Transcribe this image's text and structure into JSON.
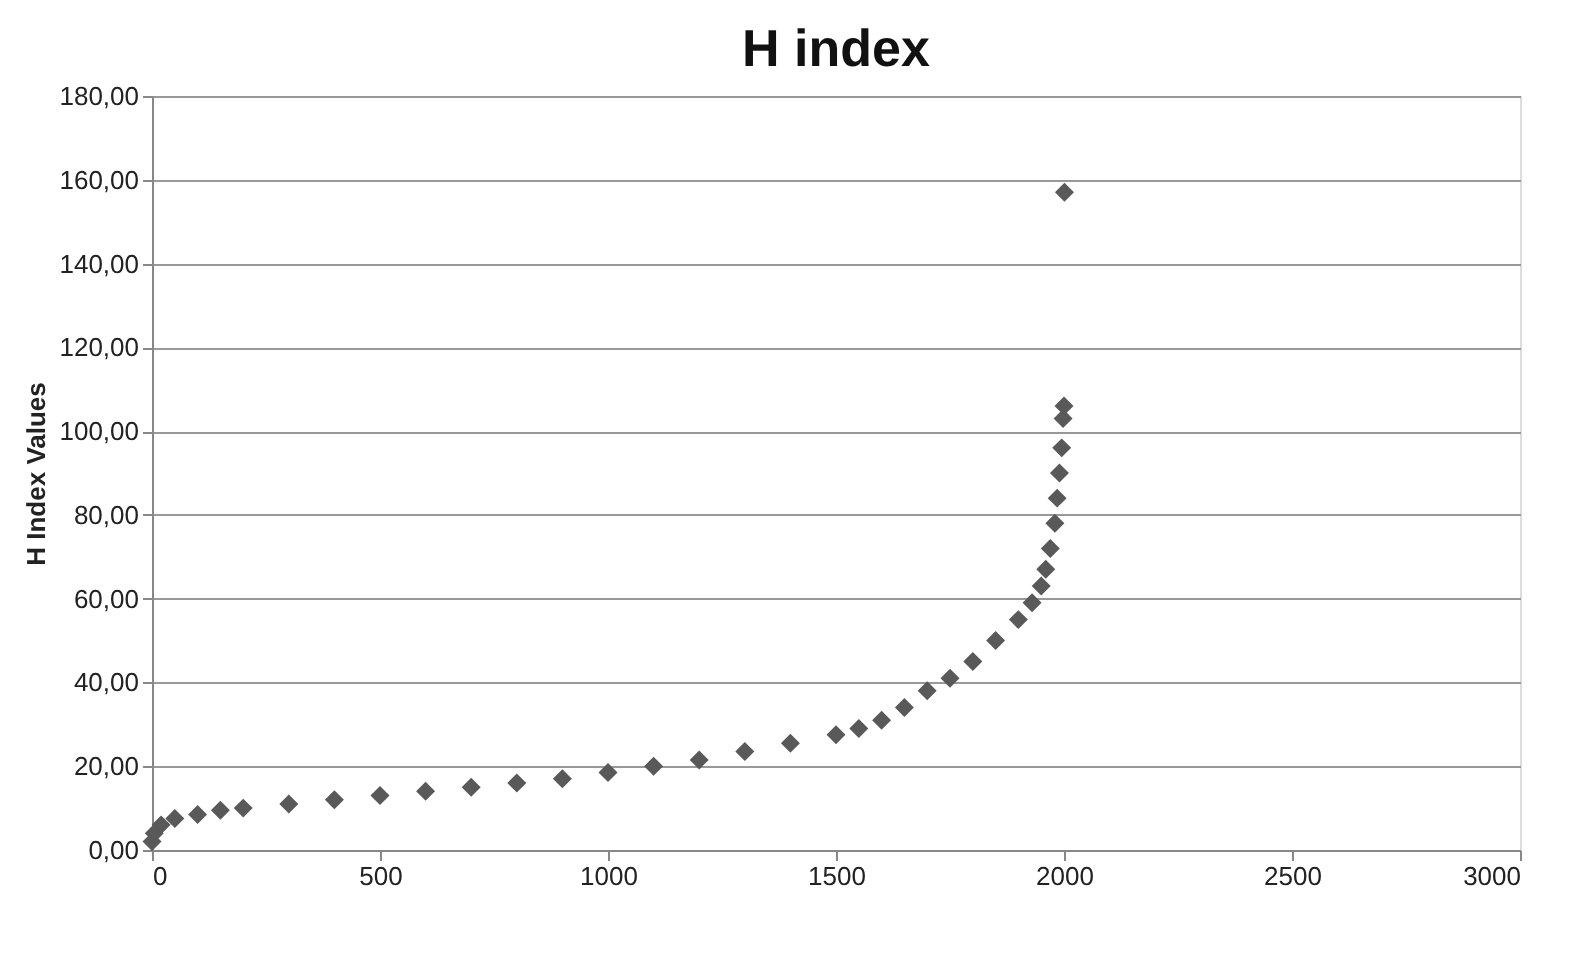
{
  "chart_data": {
    "type": "scatter",
    "title": "H index",
    "ylabel": "H Index Values",
    "x": [
      0,
      5,
      20,
      50,
      100,
      150,
      200,
      300,
      400,
      500,
      600,
      700,
      800,
      900,
      1000,
      1100,
      1200,
      1300,
      1400,
      1500,
      1550,
      1600,
      1650,
      1700,
      1750,
      1800,
      1850,
      1900,
      1930,
      1950,
      1960,
      1970,
      1980,
      1985,
      1990,
      1995,
      1998,
      2000,
      2001
    ],
    "values": [
      2,
      4,
      6,
      7.5,
      8.5,
      9.5,
      10,
      11,
      12,
      13,
      14,
      15,
      16,
      17,
      18.5,
      20,
      21.5,
      23.5,
      25.5,
      27.5,
      29,
      31,
      34,
      38,
      41,
      45,
      50,
      55,
      59,
      63,
      67,
      72,
      78,
      84,
      90,
      96,
      103,
      106,
      157
    ],
    "color": "#595959",
    "marker": "diamond",
    "grid": "y",
    "xlim": [
      0,
      3000
    ],
    "xticks": [
      0,
      500,
      1000,
      1500,
      2000,
      2500,
      3000
    ],
    "ylim": [
      0,
      180
    ],
    "yticks": [
      {
        "value": 0,
        "label": "0,00"
      },
      {
        "value": 20,
        "label": "20,00"
      },
      {
        "value": 40,
        "label": "40,00"
      },
      {
        "value": 60,
        "label": "60,00"
      },
      {
        "value": 80,
        "label": "80,00"
      },
      {
        "value": 100,
        "label": "100,00"
      },
      {
        "value": 120,
        "label": "120,00"
      },
      {
        "value": 140,
        "label": "140,00"
      },
      {
        "value": 160,
        "label": "160,00"
      },
      {
        "value": 180,
        "label": "180,00"
      }
    ]
  }
}
